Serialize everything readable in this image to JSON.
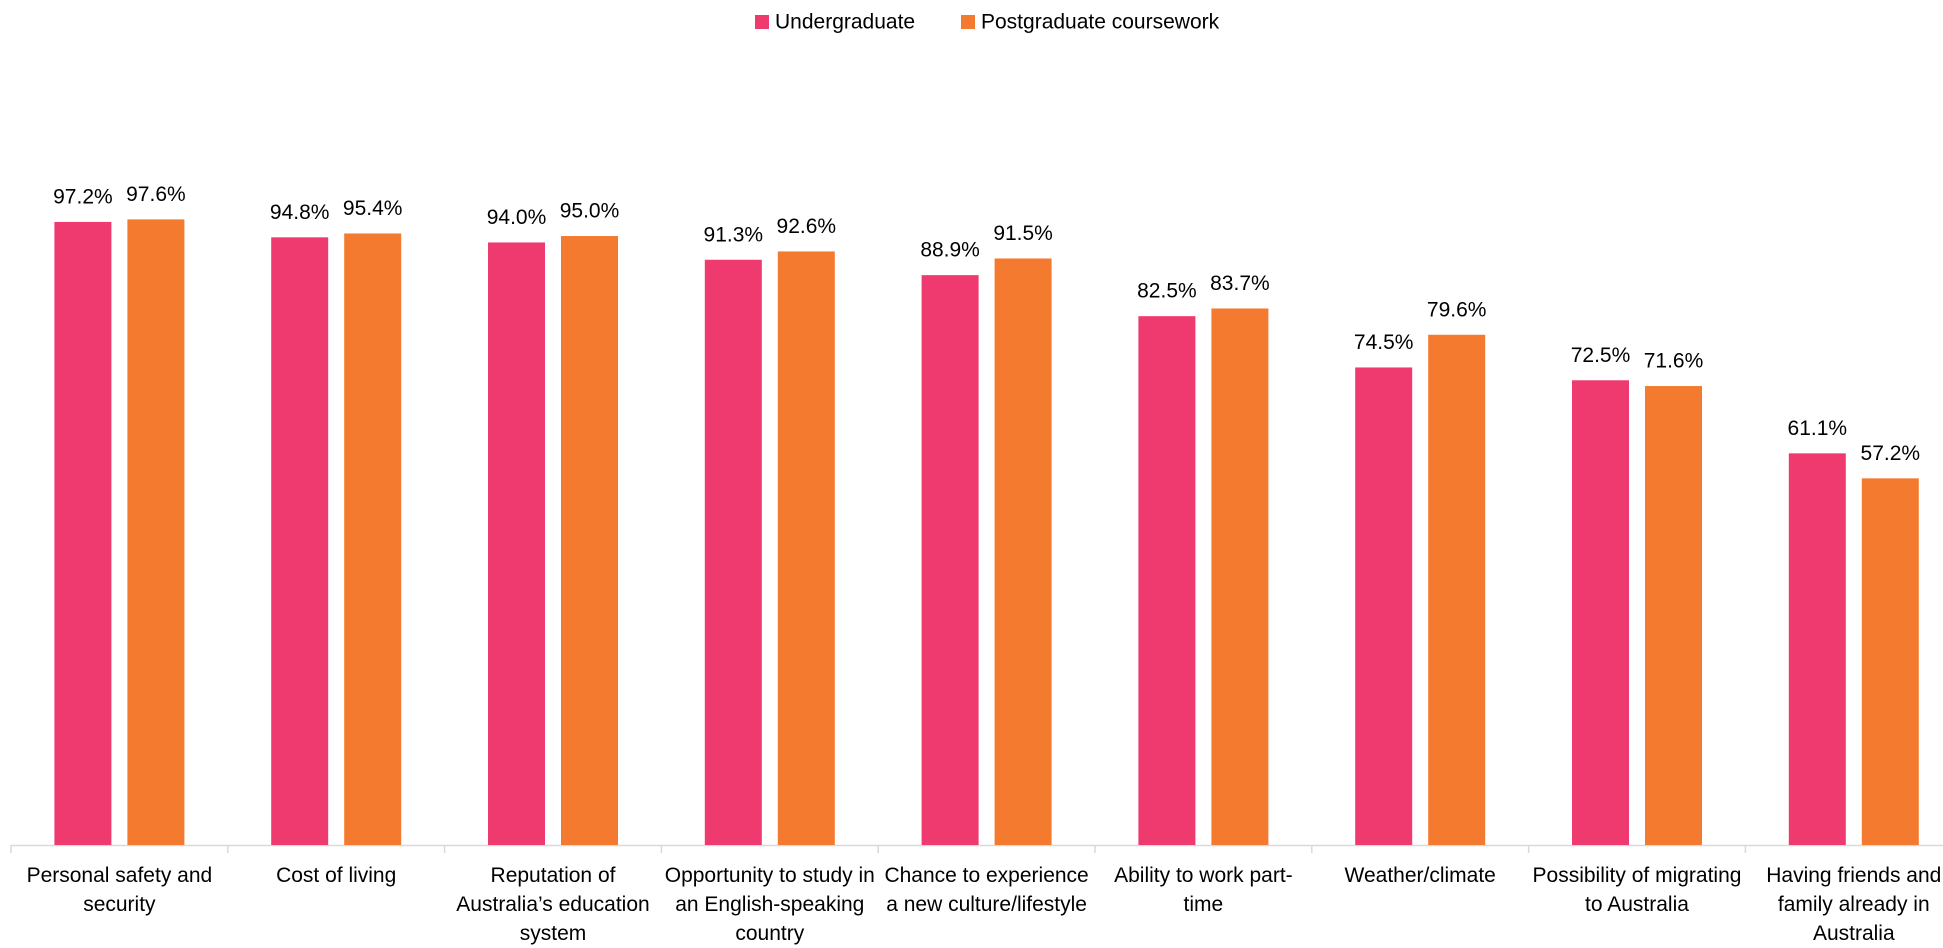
{
  "chart_data": {
    "type": "bar",
    "categories": [
      "Personal safety and security",
      "Cost of living",
      "Reputation of Australia’s education system",
      "Opportunity to study in an English-speaking country",
      "Chance to experience a new culture/lifestyle",
      "Ability to work part-time",
      "Weather/climate",
      "Possibility of migrating to Australia",
      "Having friends and family already in Australia"
    ],
    "series": [
      {
        "name": "Undergraduate",
        "color": "#ee3a6e",
        "values": [
          97.2,
          94.8,
          94.0,
          91.3,
          88.9,
          82.5,
          74.5,
          72.5,
          61.1
        ],
        "value_labels": [
          "97.2%",
          "94.8%",
          "94.0%",
          "91.3%",
          "88.9%",
          "82.5%",
          "74.5%",
          "72.5%",
          "61.1%"
        ]
      },
      {
        "name": "Postgraduate coursework",
        "color": "#f47a30",
        "values": [
          97.6,
          95.4,
          95.0,
          92.6,
          91.5,
          83.7,
          79.6,
          71.6,
          57.2
        ],
        "value_labels": [
          "97.6%",
          "95.4%",
          "95.0%",
          "92.6%",
          "91.5%",
          "83.7%",
          "79.6%",
          "71.6%",
          "57.2%"
        ]
      }
    ],
    "ylim": [
      0,
      100
    ],
    "legend": "top"
  }
}
